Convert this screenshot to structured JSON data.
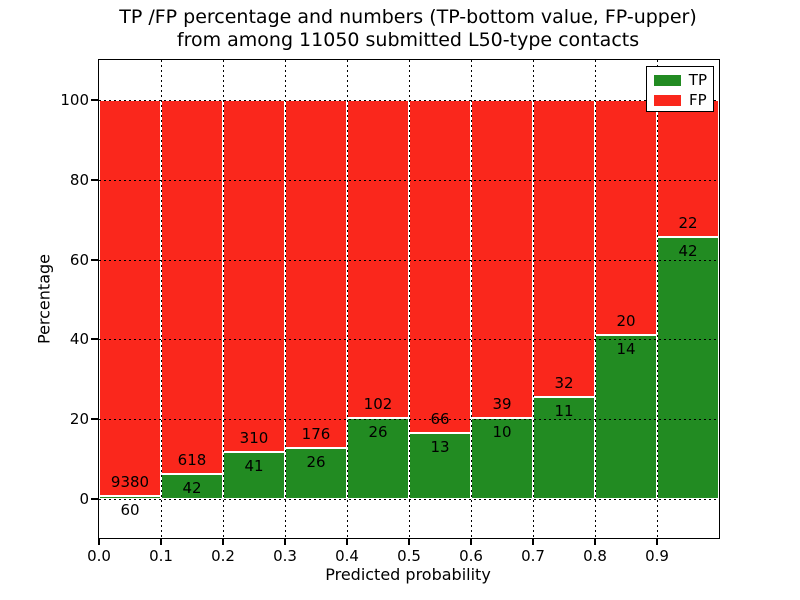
{
  "chart_data": {
    "type": "bar",
    "stacked": true,
    "title": [
      "TP /FP percentage and numbers (TP-bottom value, FP-upper)",
      "from among 11050 submitted L50-type contacts"
    ],
    "xlabel": "Predicted probability",
    "ylabel": "Percentage",
    "x_tick_labels": [
      "0.0",
      "0.1",
      "0.2",
      "0.3",
      "0.4",
      "0.5",
      "0.6",
      "0.7",
      "0.8",
      "0.9"
    ],
    "y_ticks": [
      0,
      20,
      40,
      60,
      80,
      100
    ],
    "ylim": [
      -10,
      110
    ],
    "grid": "dotted",
    "legend_position": "upper-right",
    "series": [
      {
        "name": "TP",
        "color": "#228b22"
      },
      {
        "name": "FP",
        "color": "#fa271c"
      }
    ],
    "bins": [
      {
        "x_start": 0.0,
        "tp": 60,
        "fp": 9380
      },
      {
        "x_start": 0.1,
        "tp": 42,
        "fp": 618
      },
      {
        "x_start": 0.2,
        "tp": 41,
        "fp": 310
      },
      {
        "x_start": 0.3,
        "tp": 26,
        "fp": 176
      },
      {
        "x_start": 0.4,
        "tp": 26,
        "fp": 102
      },
      {
        "x_start": 0.5,
        "tp": 13,
        "fp": 66
      },
      {
        "x_start": 0.6,
        "tp": 10,
        "fp": 39
      },
      {
        "x_start": 0.7,
        "tp": 11,
        "fp": 32
      },
      {
        "x_start": 0.8,
        "tp": 14,
        "fp": 20
      },
      {
        "x_start": 0.9,
        "tp": 42,
        "fp": 22
      }
    ]
  }
}
